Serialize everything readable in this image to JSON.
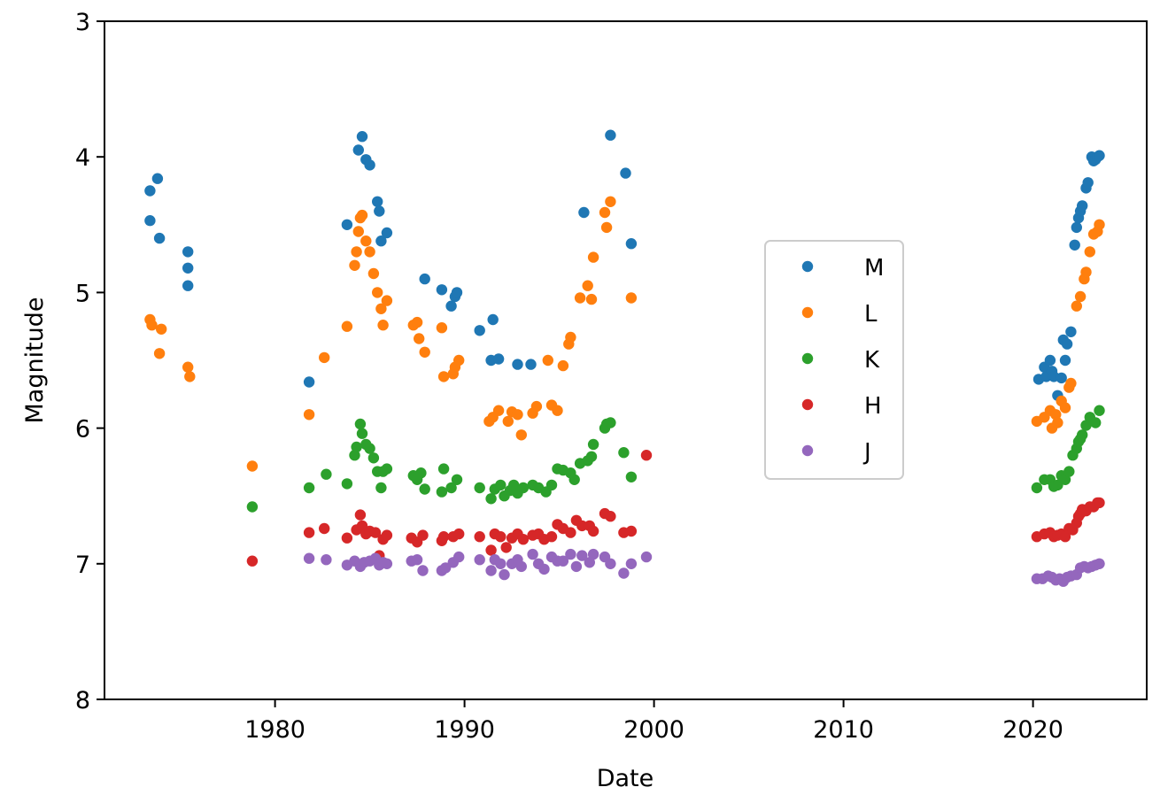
{
  "chart_data": {
    "type": "scatter",
    "title": "",
    "xlabel": "Date",
    "ylabel": "Magnitude",
    "xlim": [
      1971,
      2026
    ],
    "ylim": [
      8,
      3
    ],
    "y_inverted": true,
    "x_ticks": [
      1980,
      1990,
      2000,
      2010,
      2020
    ],
    "y_ticks": [
      3,
      4,
      5,
      6,
      7,
      8
    ],
    "grid": false,
    "legend_placement": "center-right",
    "series": [
      {
        "name": "M",
        "color": "#1f77b4",
        "x": [
          1973.4,
          1973.4,
          1973.8,
          1973.9,
          1975.4,
          1975.4,
          1975.4,
          1981.8,
          1983.8,
          1984.4,
          1984.6,
          1984.8,
          1985.0,
          1985.4,
          1985.5,
          1985.6,
          1985.9,
          1987.9,
          1988.8,
          1989.3,
          1989.5,
          1989.6,
          1990.8,
          1991.4,
          1991.5,
          1991.8,
          1992.8,
          1993.5,
          1996.3,
          1997.7,
          1998.5,
          1998.8,
          2020.3,
          2020.6,
          2020.7,
          2020.9,
          2021.0,
          2021.1,
          2021.3,
          2021.5,
          2021.6,
          2021.7,
          2021.8,
          2022.0,
          2022.2,
          2022.3,
          2022.4,
          2022.5,
          2022.6,
          2022.8,
          2022.9,
          2023.1,
          2023.2,
          2023.3,
          2023.4,
          2023.5
        ],
        "y": [
          4.25,
          4.47,
          4.16,
          4.6,
          4.7,
          4.82,
          4.95,
          5.66,
          4.5,
          3.95,
          3.85,
          4.02,
          4.06,
          4.33,
          4.4,
          4.62,
          4.56,
          4.9,
          4.98,
          5.1,
          5.03,
          5.0,
          5.28,
          5.5,
          5.2,
          5.49,
          5.53,
          5.53,
          4.41,
          3.84,
          4.12,
          4.64,
          5.64,
          5.55,
          5.62,
          5.5,
          5.58,
          5.62,
          5.76,
          5.63,
          5.35,
          5.5,
          5.38,
          5.29,
          4.65,
          4.52,
          4.45,
          4.4,
          4.36,
          4.23,
          4.19,
          4.0,
          4.03,
          4.02,
          4.0,
          3.99
        ]
      },
      {
        "name": "L",
        "color": "#ff7f0e",
        "x": [
          1973.4,
          1973.5,
          1973.9,
          1974.0,
          1975.4,
          1975.5,
          1978.8,
          1981.8,
          1982.6,
          1983.8,
          1984.2,
          1984.3,
          1984.4,
          1984.5,
          1984.6,
          1984.8,
          1985.0,
          1985.2,
          1985.4,
          1985.6,
          1985.7,
          1985.9,
          1987.3,
          1987.5,
          1987.6,
          1987.9,
          1988.8,
          1988.9,
          1989.4,
          1989.5,
          1989.7,
          1991.3,
          1991.5,
          1991.8,
          1992.3,
          1992.5,
          1992.8,
          1993.0,
          1993.6,
          1993.8,
          1994.4,
          1994.6,
          1994.9,
          1995.2,
          1995.5,
          1995.6,
          1996.1,
          1996.5,
          1996.7,
          1996.8,
          1997.4,
          1997.5,
          1997.7,
          1998.8,
          2020.2,
          2020.6,
          2020.9,
          2021.0,
          2021.2,
          2021.3,
          2021.5,
          2021.7,
          2021.9,
          2022.0,
          2022.3,
          2022.5,
          2022.7,
          2022.8,
          2023.0,
          2023.2,
          2023.4,
          2023.5
        ],
        "y": [
          5.2,
          5.24,
          5.45,
          5.27,
          5.55,
          5.62,
          6.28,
          5.9,
          5.48,
          5.25,
          4.8,
          4.7,
          4.55,
          4.45,
          4.43,
          4.62,
          4.7,
          4.86,
          5.0,
          5.12,
          5.24,
          5.06,
          5.24,
          5.22,
          5.34,
          5.44,
          5.26,
          5.62,
          5.6,
          5.55,
          5.5,
          5.95,
          5.92,
          5.87,
          5.95,
          5.88,
          5.9,
          6.05,
          5.89,
          5.84,
          5.5,
          5.83,
          5.87,
          5.54,
          5.38,
          5.33,
          5.04,
          4.95,
          5.05,
          4.74,
          4.41,
          4.52,
          4.33,
          5.04,
          5.95,
          5.92,
          5.87,
          6.0,
          5.9,
          5.96,
          5.8,
          5.85,
          5.7,
          5.67,
          5.1,
          5.03,
          4.9,
          4.85,
          4.7,
          4.57,
          4.55,
          4.5
        ]
      },
      {
        "name": "K",
        "color": "#2ca02c",
        "x": [
          1978.8,
          1981.8,
          1982.7,
          1983.8,
          1984.2,
          1984.3,
          1984.5,
          1984.6,
          1984.8,
          1985.0,
          1985.2,
          1985.4,
          1985.6,
          1985.7,
          1985.9,
          1987.3,
          1987.5,
          1987.7,
          1987.9,
          1988.8,
          1988.9,
          1989.3,
          1989.6,
          1990.8,
          1991.4,
          1991.6,
          1991.9,
          1992.1,
          1992.4,
          1992.6,
          1992.8,
          1993.1,
          1993.6,
          1993.9,
          1994.3,
          1994.6,
          1994.9,
          1995.2,
          1995.6,
          1995.8,
          1996.1,
          1996.5,
          1996.7,
          1996.8,
          1997.4,
          1997.5,
          1997.7,
          1998.4,
          1998.8,
          2020.2,
          2020.6,
          2020.9,
          2021.1,
          2021.3,
          2021.5,
          2021.7,
          2021.9,
          2022.1,
          2022.3,
          2022.4,
          2022.5,
          2022.6,
          2022.8,
          2023.0,
          2023.3,
          2023.5
        ],
        "y": [
          6.58,
          6.44,
          6.34,
          6.41,
          6.2,
          6.14,
          5.97,
          6.04,
          6.12,
          6.15,
          6.22,
          6.32,
          6.44,
          6.32,
          6.3,
          6.35,
          6.38,
          6.33,
          6.45,
          6.47,
          6.3,
          6.44,
          6.38,
          6.44,
          6.52,
          6.45,
          6.42,
          6.5,
          6.46,
          6.42,
          6.48,
          6.44,
          6.42,
          6.44,
          6.47,
          6.42,
          6.3,
          6.31,
          6.33,
          6.38,
          6.26,
          6.24,
          6.21,
          6.12,
          6.0,
          5.97,
          5.96,
          6.18,
          6.36,
          6.44,
          6.38,
          6.38,
          6.43,
          6.42,
          6.35,
          6.38,
          6.32,
          6.2,
          6.15,
          6.1,
          6.08,
          6.05,
          5.98,
          5.92,
          5.96,
          5.87
        ]
      },
      {
        "name": "H",
        "color": "#d62728",
        "x": [
          1978.8,
          1981.8,
          1982.6,
          1983.8,
          1984.3,
          1984.5,
          1984.6,
          1984.8,
          1985.0,
          1985.3,
          1985.5,
          1985.7,
          1985.9,
          1987.2,
          1987.5,
          1987.8,
          1988.8,
          1988.9,
          1989.4,
          1989.7,
          1990.8,
          1991.4,
          1991.6,
          1991.9,
          1992.2,
          1992.5,
          1992.8,
          1993.1,
          1993.6,
          1993.9,
          1994.2,
          1994.6,
          1994.9,
          1995.2,
          1995.6,
          1995.9,
          1996.2,
          1996.6,
          1996.8,
          1997.4,
          1997.7,
          1998.4,
          1998.8,
          1999.6,
          2020.2,
          2020.6,
          2020.9,
          2021.1,
          2021.3,
          2021.5,
          2021.7,
          2021.9,
          2022.1,
          2022.3,
          2022.4,
          2022.5,
          2022.6,
          2022.8,
          2023.0,
          2023.2,
          2023.4,
          2023.5
        ],
        "y": [
          6.98,
          6.77,
          6.74,
          6.81,
          6.75,
          6.64,
          6.72,
          6.78,
          6.76,
          6.77,
          6.94,
          6.82,
          6.79,
          6.81,
          6.84,
          6.79,
          6.83,
          6.8,
          6.8,
          6.78,
          6.8,
          6.9,
          6.78,
          6.8,
          6.88,
          6.81,
          6.78,
          6.82,
          6.79,
          6.78,
          6.82,
          6.8,
          6.71,
          6.74,
          6.77,
          6.68,
          6.72,
          6.72,
          6.76,
          6.63,
          6.65,
          6.77,
          6.76,
          6.2,
          6.8,
          6.78,
          6.77,
          6.8,
          6.79,
          6.78,
          6.8,
          6.74,
          6.75,
          6.7,
          6.65,
          6.63,
          6.6,
          6.61,
          6.58,
          6.58,
          6.55,
          6.55
        ]
      },
      {
        "name": "J",
        "color": "#9467bd",
        "x": [
          1981.8,
          1982.7,
          1983.8,
          1984.2,
          1984.5,
          1984.7,
          1985.0,
          1985.3,
          1985.5,
          1985.7,
          1985.9,
          1987.2,
          1987.5,
          1987.8,
          1988.8,
          1989.0,
          1989.4,
          1989.7,
          1990.8,
          1991.4,
          1991.6,
          1991.9,
          1992.1,
          1992.5,
          1992.8,
          1993.0,
          1993.6,
          1993.9,
          1994.2,
          1994.6,
          1994.9,
          1995.2,
          1995.6,
          1995.9,
          1996.2,
          1996.6,
          1996.8,
          1997.4,
          1997.7,
          1998.4,
          1998.8,
          1999.6,
          2020.2,
          2020.5,
          2020.8,
          2021.0,
          2021.2,
          2021.4,
          2021.6,
          2021.8,
          2022.0,
          2022.3,
          2022.5,
          2022.7,
          2022.9,
          2023.1,
          2023.3,
          2023.5
        ],
        "y": [
          6.96,
          6.97,
          7.01,
          6.98,
          7.02,
          6.99,
          6.98,
          6.96,
          7.01,
          6.99,
          7.0,
          6.98,
          6.97,
          7.05,
          7.05,
          7.03,
          6.99,
          6.95,
          6.97,
          7.05,
          6.97,
          7.0,
          7.08,
          7.0,
          6.97,
          7.02,
          6.93,
          7.0,
          7.04,
          6.95,
          6.98,
          6.98,
          6.93,
          7.02,
          6.94,
          6.99,
          6.93,
          6.95,
          7.0,
          7.07,
          7.0,
          6.95,
          7.11,
          7.11,
          7.09,
          7.1,
          7.12,
          7.11,
          7.13,
          7.1,
          7.09,
          7.08,
          7.03,
          7.02,
          7.03,
          7.02,
          7.01,
          7.0
        ]
      }
    ]
  }
}
